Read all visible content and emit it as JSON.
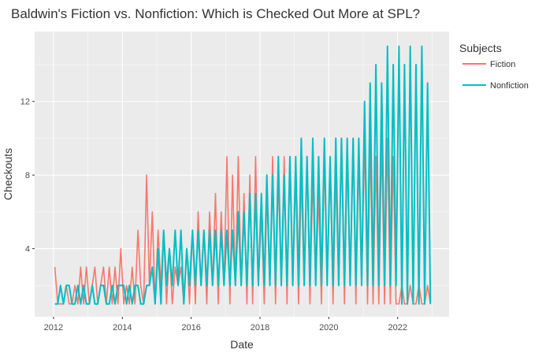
{
  "chart_data": {
    "type": "line",
    "title": "Baldwin's Fiction vs. Nonfiction: Which is Checked Out More at SPL?",
    "xlabel": "Date",
    "ylabel": "Checkouts",
    "xlim": [
      "2011-06-15",
      "2023-07-01"
    ],
    "ylim": [
      0.3,
      15.8
    ],
    "x_ticks": [
      "2012",
      "2014",
      "2016",
      "2018",
      "2020",
      "2022"
    ],
    "y_ticks": [
      "4",
      "8",
      "12"
    ],
    "grid": true,
    "legend": {
      "title": "Subjects",
      "placement": "right"
    },
    "series": [
      {
        "name": "Fiction",
        "color": "#F8766D",
        "note_monthly_values": "estimated per-month checkout counts, Jan 2012 – Dec 2022",
        "start": "2012-01-15",
        "values": [
          3,
          1,
          1,
          1,
          2,
          1,
          1,
          2,
          1,
          3,
          1,
          3,
          1,
          2,
          3,
          1,
          2,
          3,
          1,
          3,
          1,
          3,
          1,
          4,
          1,
          2,
          1,
          3,
          1,
          5,
          2,
          1,
          8,
          2,
          6,
          1,
          5,
          2,
          5,
          1,
          4,
          1,
          3,
          2,
          3,
          1,
          4,
          1,
          5,
          1,
          6,
          2,
          5,
          1,
          6,
          2,
          7,
          1,
          6,
          2,
          9,
          1,
          8,
          2,
          9,
          2,
          7,
          1,
          8,
          1,
          9,
          2,
          6,
          1,
          7,
          2,
          9,
          1,
          8,
          2,
          9,
          1,
          9,
          2,
          8,
          1,
          8,
          2,
          9,
          1,
          8,
          2,
          7,
          1,
          9,
          2,
          9,
          1,
          8,
          2,
          10,
          1,
          9,
          2,
          10,
          1,
          9,
          2,
          10,
          1,
          10,
          1,
          9,
          1,
          10,
          1,
          10,
          1,
          9,
          1,
          1,
          2,
          1,
          1,
          2,
          1,
          1,
          2,
          1,
          1,
          2,
          1
        ]
      },
      {
        "name": "Nonfiction",
        "color": "#00BFC4",
        "start": "2012-01-15",
        "values": [
          1,
          1,
          2,
          1,
          2,
          2,
          1,
          1,
          2,
          1,
          2,
          1,
          1,
          2,
          1,
          1,
          2,
          2,
          1,
          1,
          2,
          1,
          2,
          2,
          2,
          1,
          2,
          1,
          2,
          2,
          1,
          1,
          2,
          2,
          3,
          1,
          4,
          1,
          5,
          2,
          4,
          2,
          5,
          2,
          5,
          1,
          4,
          2,
          5,
          2,
          5,
          2,
          5,
          2,
          5,
          2,
          5,
          2,
          5,
          2,
          5,
          2,
          5,
          2,
          6,
          2,
          6,
          2,
          7,
          2,
          7,
          2,
          7,
          2,
          8,
          2,
          8,
          2,
          9,
          2,
          8,
          2,
          9,
          2,
          9,
          2,
          10,
          2,
          9,
          2,
          10,
          2,
          9,
          2,
          10,
          2,
          9,
          2,
          10,
          2,
          10,
          2,
          10,
          2,
          10,
          2,
          10,
          2,
          12,
          2,
          13,
          2,
          14,
          2,
          13,
          2,
          15,
          2,
          14,
          2,
          15,
          1,
          14,
          1,
          15,
          1,
          14,
          1,
          15,
          1,
          13,
          1
        ]
      }
    ]
  }
}
